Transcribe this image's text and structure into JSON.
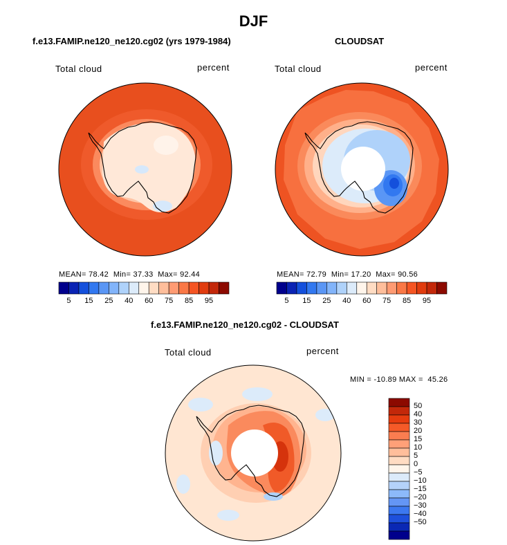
{
  "figure": {
    "season_title": "DJF"
  },
  "panels": [
    {
      "name": "model",
      "title": "f.e13.FAMIP.ne120_ne120.cg02 (yrs 1979-1984)",
      "variable": "Total cloud",
      "units": "percent",
      "stats": {
        "mean_label": "MEAN=",
        "mean": "78.42",
        "min_label": "Min=",
        "min": "37.33",
        "max_label": "Max=",
        "max": "92.44"
      }
    },
    {
      "name": "cloudsat",
      "title": "CLOUDSAT",
      "variable": "Total cloud",
      "units": "percent",
      "stats": {
        "mean_label": "MEAN=",
        "mean": "72.79",
        "min_label": "Min=",
        "min": "17.20",
        "max_label": "Max=",
        "max": "90.56"
      }
    },
    {
      "name": "difference",
      "title": "f.e13.FAMIP.ne120_ne120.cg02 - CLOUDSAT",
      "variable": "Total cloud",
      "units": "percent",
      "stats": {
        "min_label": "MIN =",
        "min": "-10.89",
        "max_label": "MAX =",
        "max": "45.26"
      }
    }
  ],
  "colorbar_top": {
    "colors": [
      "#00008c",
      "#0a23b4",
      "#1450dc",
      "#3278f0",
      "#5a96f5",
      "#82b4fa",
      "#afd2fa",
      "#dcebfa",
      "#fff5eb",
      "#ffdcc3",
      "#ffbe9b",
      "#ff9b73",
      "#fa7846",
      "#f55523",
      "#e13c0f",
      "#c3280a",
      "#8c0a00"
    ],
    "labels": [
      "5",
      "15",
      "25",
      "40",
      "60",
      "75",
      "85",
      "95"
    ]
  },
  "colorbar_diff": {
    "colors_top_to_bottom": [
      "#8c0a00",
      "#c3280a",
      "#e63c0f",
      "#f55a28",
      "#fa7d50",
      "#ffa078",
      "#ffbe9b",
      "#ffdcc3",
      "#fff5eb",
      "#dcebfa",
      "#b4d2fa",
      "#8cb9fa",
      "#6496f5",
      "#3c78f0",
      "#1e50dc",
      "#0a28b4",
      "#00008c"
    ],
    "labels": [
      "50",
      "40",
      "30",
      "20",
      "15",
      "10",
      "5",
      "0",
      "−5",
      "−10",
      "−15",
      "−20",
      "−30",
      "−40",
      "−50"
    ]
  },
  "chart_data": {
    "type": "heatmap",
    "projection": "south polar stereographic",
    "title": "DJF",
    "maps": [
      {
        "title": "f.e13.FAMIP.ne120_ne120.cg02 (yrs 1979-1984)",
        "variable": "Total cloud",
        "units": "percent",
        "mean": 78.42,
        "min": 37.33,
        "max": 92.44
      },
      {
        "title": "CLOUDSAT",
        "variable": "Total cloud",
        "units": "percent",
        "mean": 72.79,
        "min": 17.2,
        "max": 90.56
      },
      {
        "title": "f.e13.FAMIP.ne120_ne120.cg02 - CLOUDSAT",
        "variable": "Total cloud",
        "units": "percent",
        "min": -10.89,
        "max": 45.26
      }
    ],
    "contour_levels_abs": [
      5,
      15,
      25,
      40,
      60,
      75,
      85,
      95
    ],
    "contour_levels_diff": [
      -50,
      -40,
      -30,
      -20,
      -15,
      -10,
      -5,
      0,
      5,
      10,
      15,
      20,
      30,
      40,
      50
    ]
  }
}
